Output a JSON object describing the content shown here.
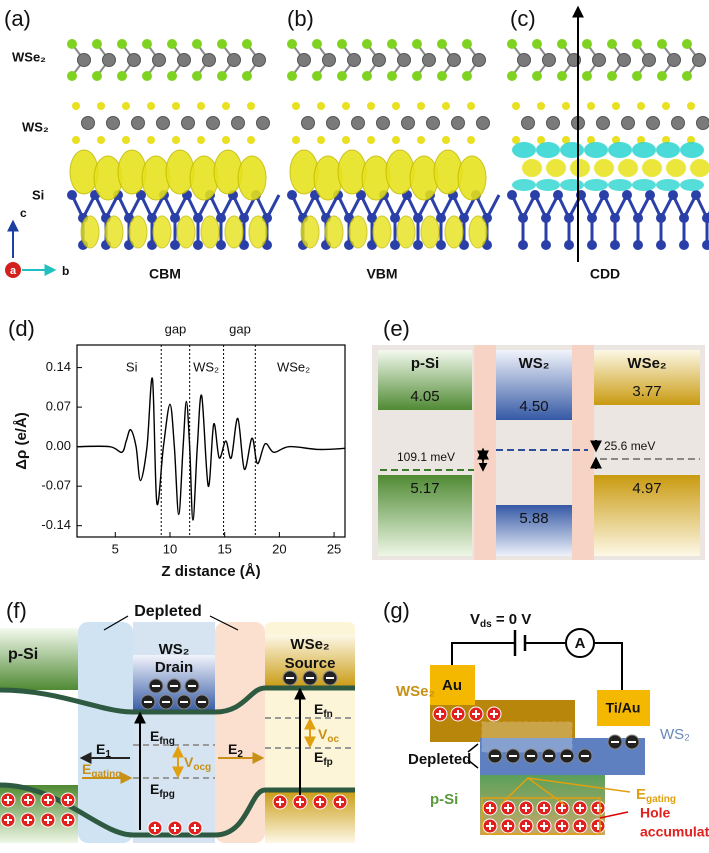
{
  "figure": {
    "labels": [
      "(a)",
      "(b)",
      "(c)",
      "(d)",
      "(e)",
      "(f)",
      "(g)"
    ]
  },
  "structures": {
    "layers": [
      "WSe₂",
      "WS₂",
      "Si"
    ],
    "axes": [
      "c",
      "a",
      "b"
    ],
    "captions": [
      "CBM",
      "VBM",
      "CDD"
    ]
  },
  "chart_data": {
    "type": "line",
    "xlabel": "Z distance (Å)",
    "ylabel": "Δρ (e/Å)",
    "x": [
      1.5,
      4.5,
      5.6,
      6.0,
      6.4,
      6.9,
      7.3,
      7.9,
      8.4,
      8.8,
      9.4,
      10.0,
      10.4,
      10.8,
      11.2,
      11.5,
      11.8,
      12.1,
      12.5,
      12.9,
      13.5,
      14.0,
      14.5,
      15.1,
      15.6,
      16.2,
      16.8,
      17.5,
      18.0,
      18.7,
      19.5,
      20.9,
      23.6,
      26.0
    ],
    "values": [
      0.0,
      0.0,
      -0.01,
      0.01,
      0.03,
      0.0,
      -0.06,
      0.0,
      0.12,
      -0.1,
      0.0,
      0.075,
      0.0,
      -0.12,
      0.0,
      0.08,
      0.0,
      -0.13,
      0.0,
      0.09,
      -0.07,
      0.04,
      -0.02,
      0.01,
      -0.02,
      0.05,
      -0.04,
      0.015,
      -0.03,
      0.005,
      -0.01,
      0.0,
      -0.005,
      -0.003
    ],
    "color": "#000000",
    "xlim": [
      1.5,
      26
    ],
    "ylim": [
      -0.16,
      0.18
    ],
    "xticks": [
      5,
      10,
      15,
      20,
      25
    ],
    "yticks": [
      0.14,
      0.07,
      {
        "value": 0,
        "label": "0.00"
      },
      -0.07,
      -0.14
    ],
    "boundaries": [
      9.2,
      11.8,
      14.9,
      17.8
    ],
    "annotations": [
      "Si",
      "gap",
      "WS₂",
      "gap",
      "WSe₂"
    ]
  },
  "band_alignment": {
    "columns": [
      {
        "name": "p-Si",
        "top": "4.05",
        "bottom": "5.17"
      },
      {
        "name": "WS₂",
        "top": "4.50",
        "bottom": "5.88"
      },
      {
        "name": "WSe₂",
        "top": "3.77",
        "bottom": "4.97"
      }
    ],
    "offsets": [
      "109.1 meV",
      "25.6 meV"
    ]
  },
  "device_f": {
    "depleted": "Depleted",
    "p_si": "p-Si",
    "drain": [
      "WS₂",
      "Drain"
    ],
    "source": [
      "WSe₂",
      "Source"
    ],
    "labels": [
      {
        "main": "E",
        "sub": "1"
      },
      {
        "main": "E",
        "sub": "gating"
      },
      {
        "main": "E",
        "sub": "2"
      },
      {
        "main": "E",
        "sub": "fng"
      },
      {
        "main": "V",
        "sub": "ocg"
      },
      {
        "main": "E",
        "sub": "fpg"
      },
      {
        "main": "E",
        "sub": "fn"
      },
      {
        "main": "V",
        "sub": "oc"
      },
      {
        "main": "E",
        "sub": "fp"
      }
    ]
  },
  "device_g": {
    "bias": {
      "main": "V",
      "sub": "ds",
      "rest": " = 0 V"
    },
    "meter": "A",
    "contacts": [
      "Au",
      "Ti/Au"
    ],
    "layers": [
      "WSe₂",
      "WS₂",
      "p-Si"
    ],
    "depleted": "Depleted",
    "field": {
      "main": "E",
      "sub": "gating"
    },
    "note": [
      "Hole",
      "accumulated"
    ]
  }
}
